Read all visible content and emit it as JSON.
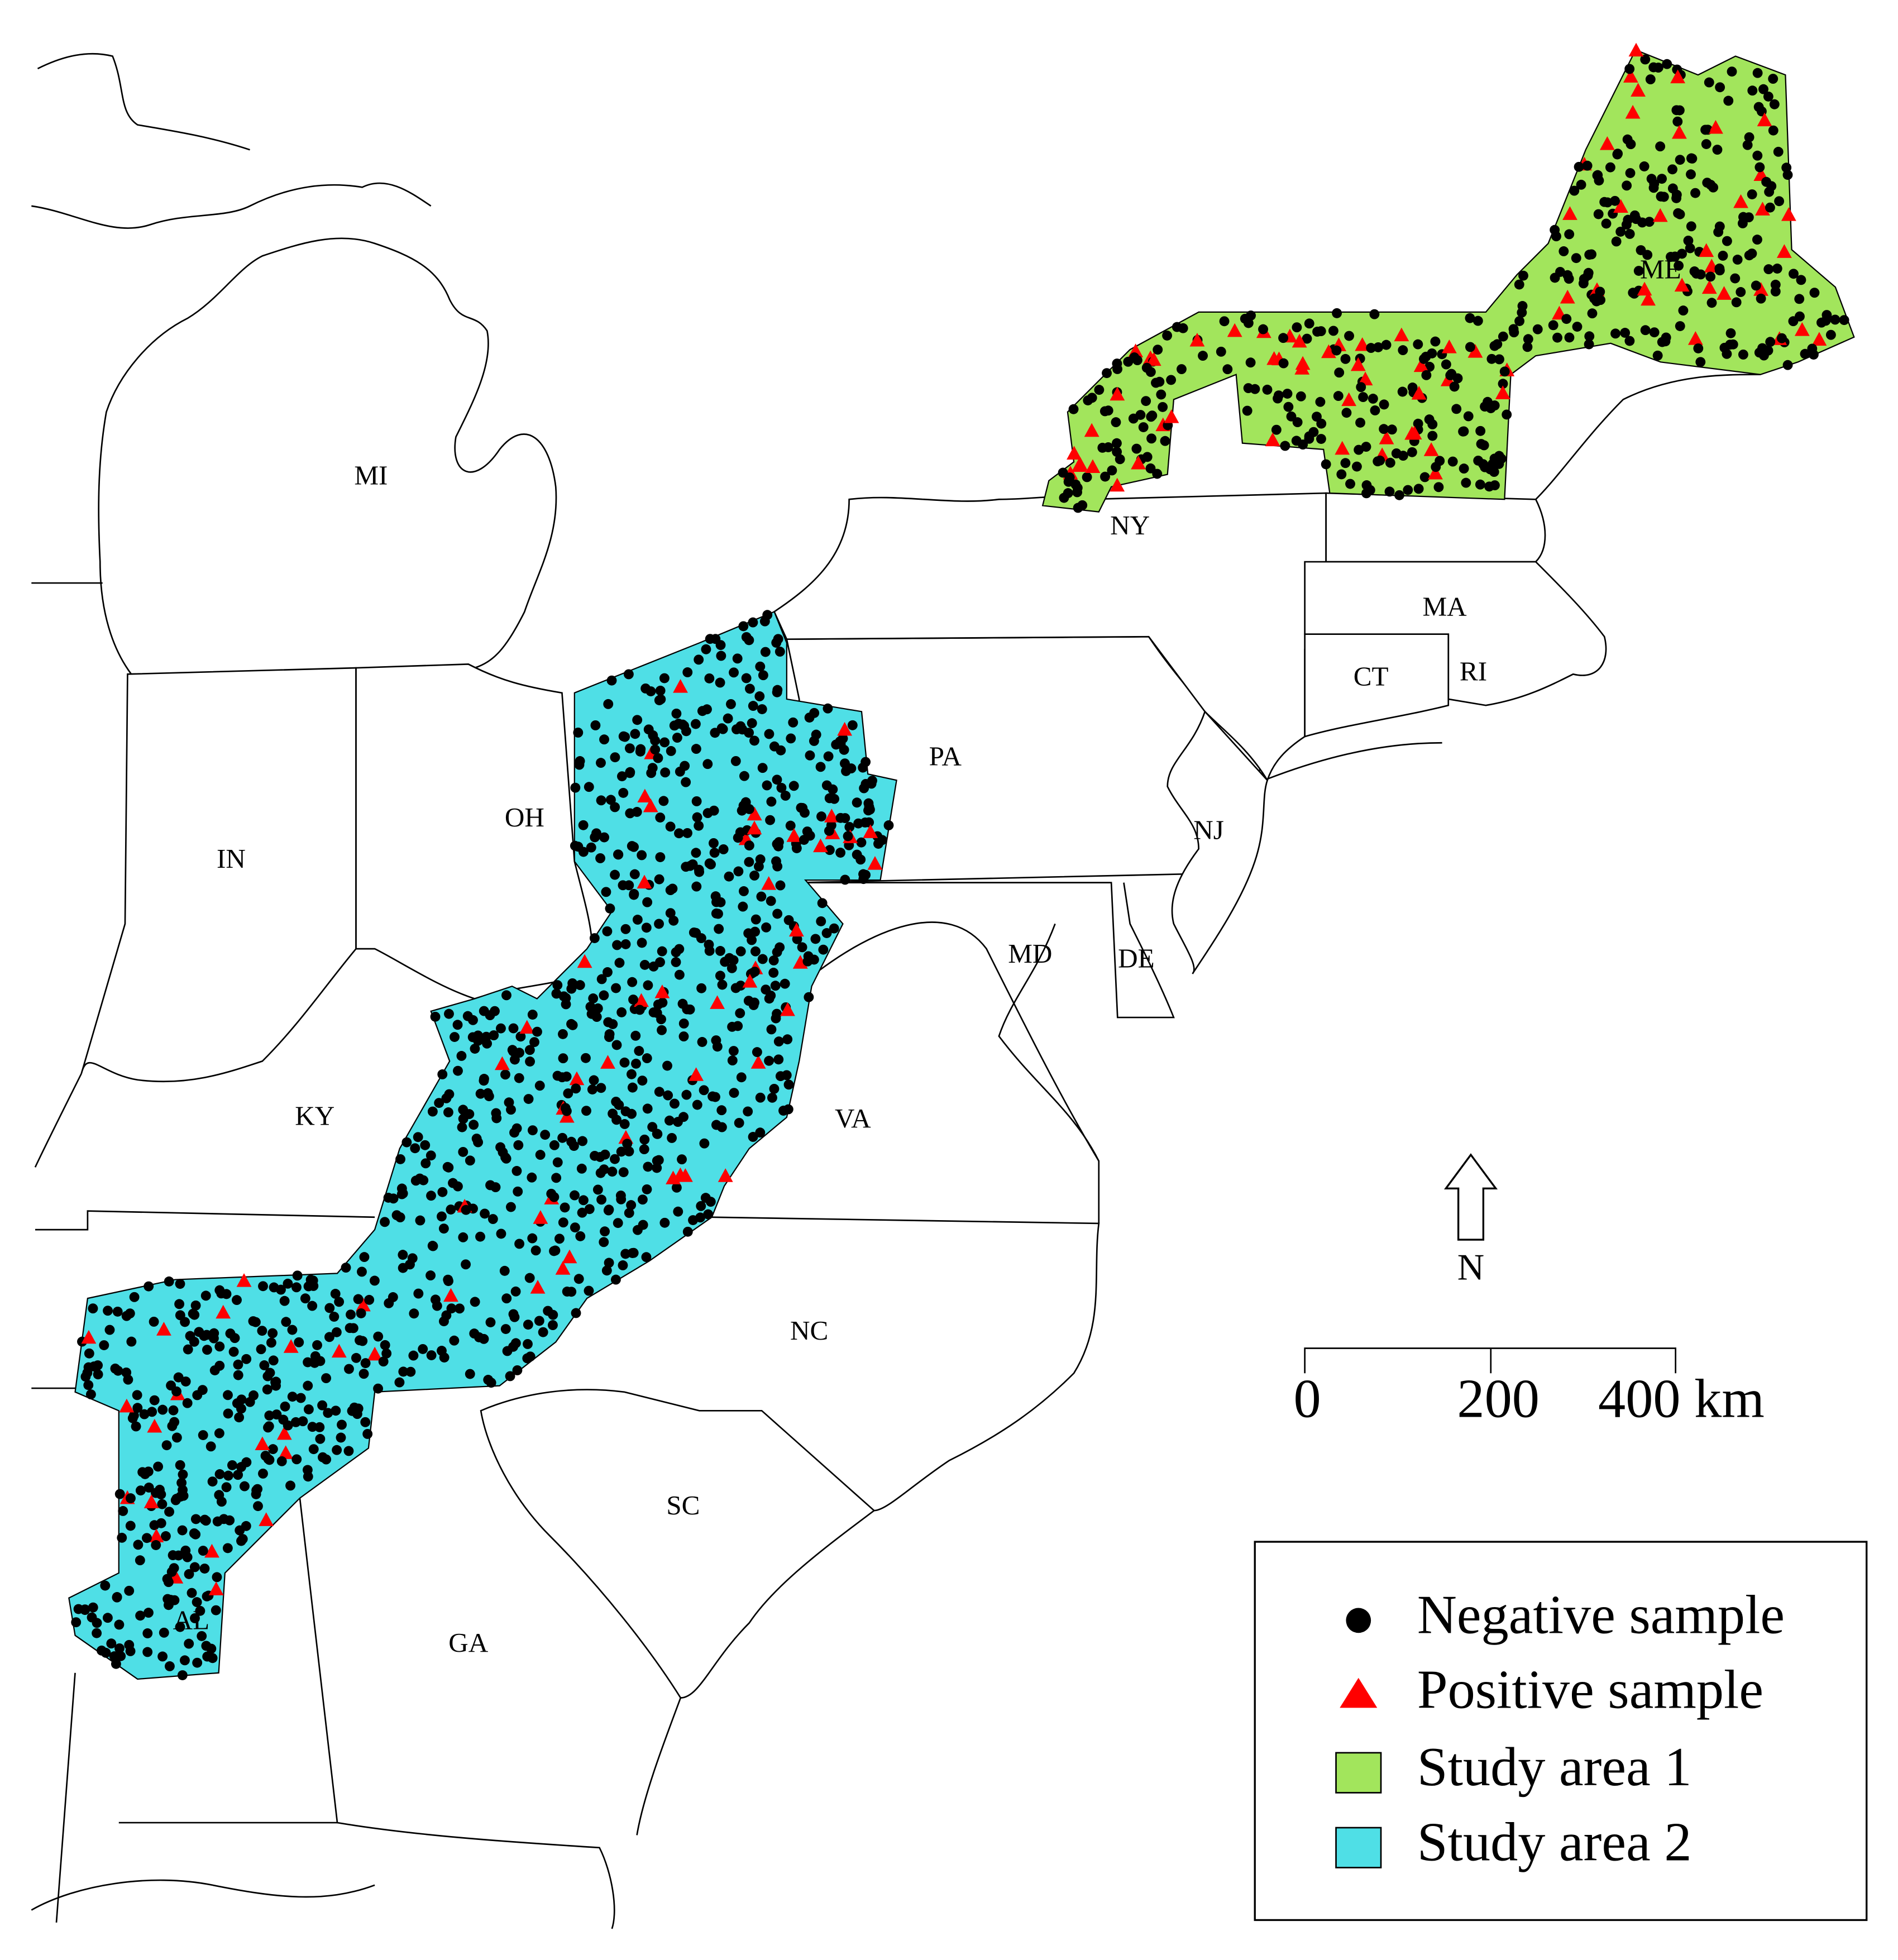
{
  "map": {
    "state_labels": [
      "MI",
      "NY",
      "MA",
      "CT",
      "RI",
      "PA",
      "OH",
      "IN",
      "NJ",
      "MD",
      "DE",
      "KY",
      "VA",
      "NC",
      "SC",
      "GA",
      "ME",
      "AL"
    ],
    "north_label": "N",
    "scale_labels": [
      "0",
      "200",
      "400 km"
    ],
    "legend": [
      {
        "label": "Negative sample",
        "color": "#000000"
      },
      {
        "label": "Positive sample",
        "color": "#ff0000"
      },
      {
        "label": "Study area 1",
        "color": "#a2e55c"
      },
      {
        "label": "Study area 2",
        "color": "#4fdfe6"
      }
    ]
  }
}
